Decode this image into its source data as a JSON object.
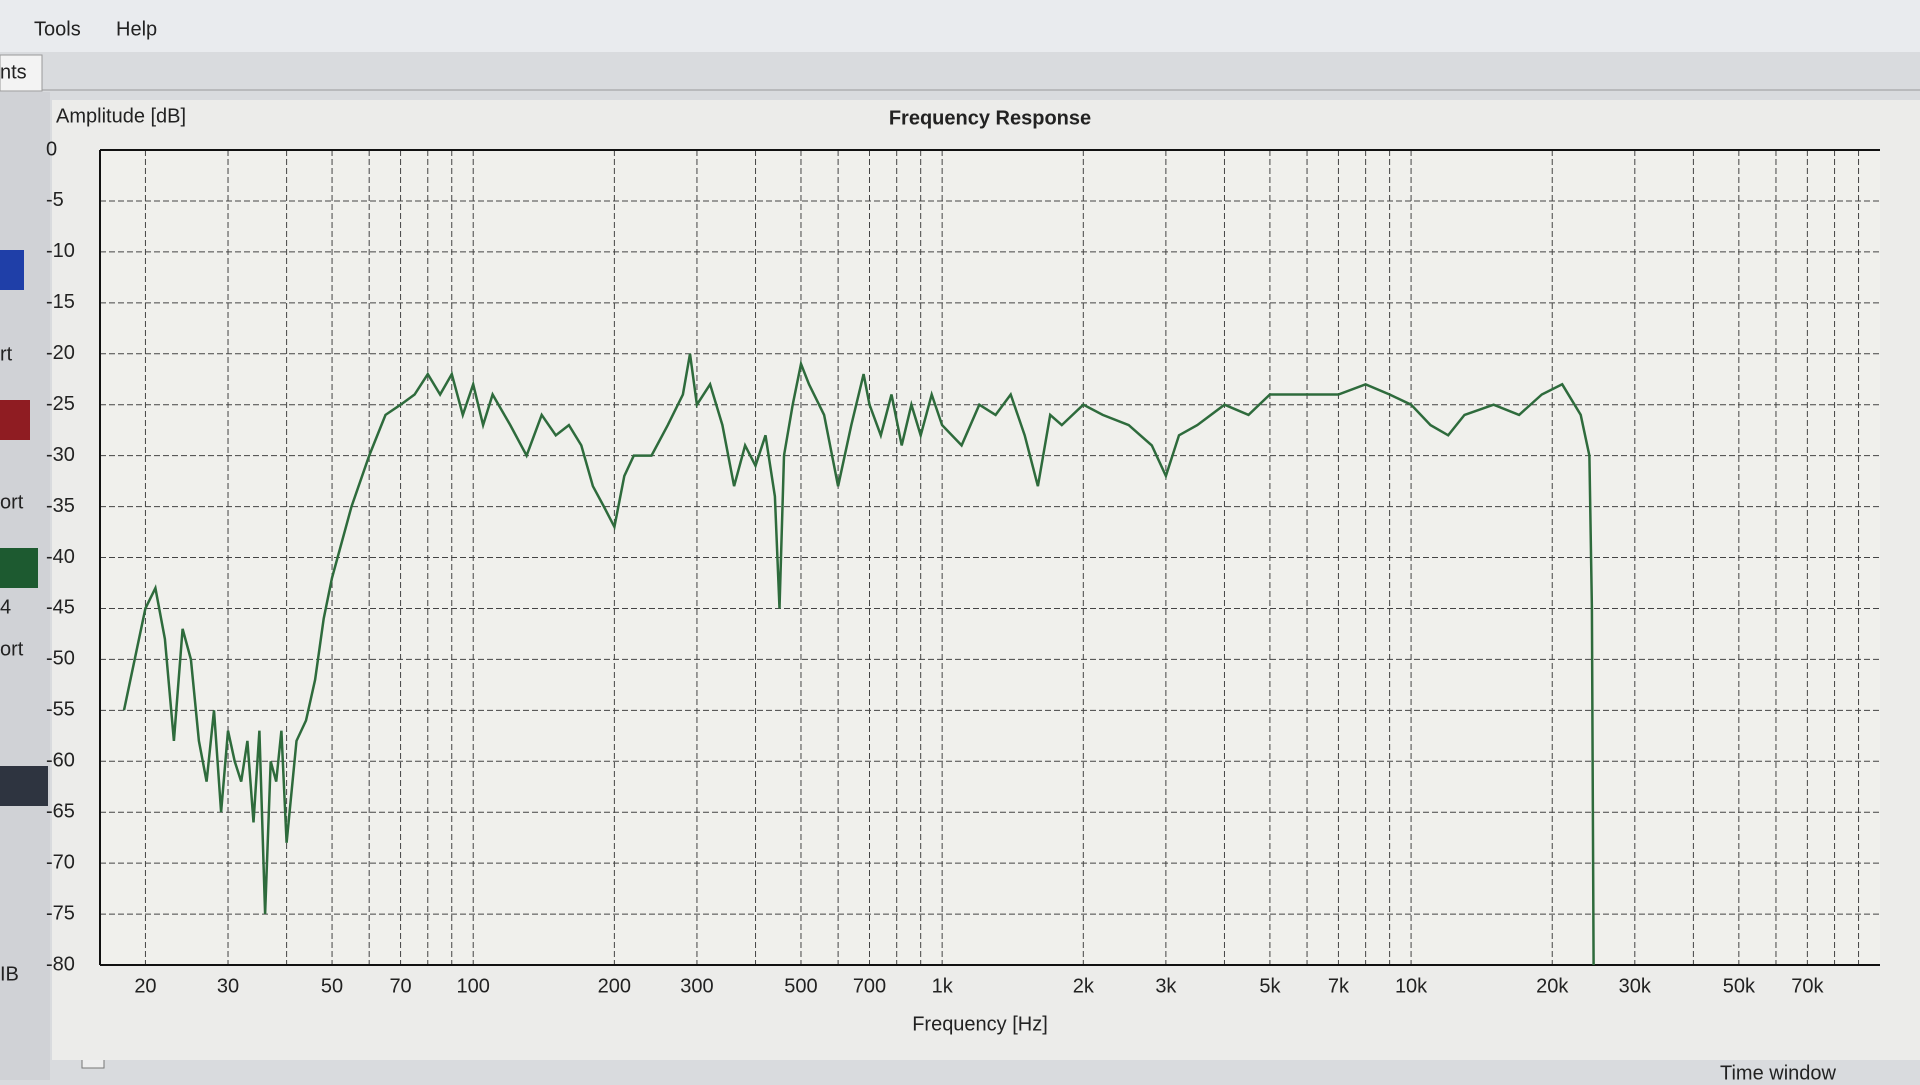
{
  "ui": {
    "menu": [
      "Tools",
      "Help"
    ],
    "tab": "nts",
    "side_labels": [
      "rt",
      "ort",
      "ort",
      "IB"
    ],
    "spinner": "4",
    "status": "Time window"
  },
  "chart_data": {
    "type": "line",
    "title": "Frequency Response",
    "x_label": "Frequency [Hz]",
    "y_label": "Amplitude [dB]",
    "log_x": true,
    "grid": true,
    "color": "#2e6b3c",
    "xlim": [
      16,
      100000
    ],
    "ylim": [
      -80,
      0
    ],
    "xticks": [
      20,
      30,
      50,
      70,
      100,
      200,
      300,
      500,
      700,
      {
        "value": 1000,
        "label": "1k"
      },
      {
        "value": 2000,
        "label": "2k"
      },
      {
        "value": 3000,
        "label": "3k"
      },
      {
        "value": 5000,
        "label": "5k"
      },
      {
        "value": 7000,
        "label": "7k"
      },
      {
        "value": 10000,
        "label": "10k"
      },
      {
        "value": 20000,
        "label": "20k"
      },
      {
        "value": 30000,
        "label": "30k"
      },
      {
        "value": 50000,
        "label": "50k"
      },
      {
        "value": 70000,
        "label": "70k"
      }
    ],
    "xminorticks": [
      40,
      60,
      80,
      90,
      400,
      600,
      800,
      900,
      4000,
      6000,
      8000,
      9000,
      40000,
      60000,
      80000,
      90000
    ],
    "yticks": [
      0,
      -5,
      -10,
      -15,
      -20,
      -25,
      -30,
      -35,
      -40,
      -45,
      -50,
      -55,
      -60,
      -65,
      -70,
      -75,
      -80
    ],
    "x": [
      18,
      20,
      21,
      22,
      23,
      24,
      25,
      26,
      27,
      28,
      29,
      30,
      31,
      32,
      33,
      34,
      35,
      36,
      37,
      38,
      39,
      40,
      42,
      44,
      46,
      48,
      50,
      55,
      60,
      65,
      70,
      75,
      80,
      85,
      90,
      95,
      100,
      105,
      110,
      120,
      130,
      140,
      150,
      160,
      170,
      180,
      190,
      200,
      210,
      220,
      240,
      260,
      280,
      290,
      300,
      320,
      340,
      360,
      380,
      400,
      420,
      440,
      450,
      460,
      480,
      500,
      520,
      560,
      600,
      640,
      680,
      700,
      740,
      780,
      820,
      860,
      900,
      950,
      1000,
      1100,
      1200,
      1300,
      1400,
      1500,
      1600,
      1700,
      1800,
      2000,
      2200,
      2500,
      2800,
      3000,
      3200,
      3500,
      4000,
      4500,
      5000,
      6000,
      7000,
      8000,
      9000,
      10000,
      11000,
      12000,
      13000,
      15000,
      17000,
      19000,
      21000,
      23000,
      24000,
      24300,
      24500
    ],
    "values": [
      -55,
      -45,
      -43,
      -48,
      -58,
      -47,
      -50,
      -58,
      -62,
      -55,
      -65,
      -57,
      -60,
      -62,
      -58,
      -66,
      -57,
      -75,
      -60,
      -62,
      -57,
      -68,
      -58,
      -56,
      -52,
      -46,
      -42,
      -35,
      -30,
      -26,
      -25,
      -24,
      -22,
      -24,
      -22,
      -26,
      -23,
      -27,
      -24,
      -27,
      -30,
      -26,
      -28,
      -27,
      -29,
      -33,
      -35,
      -37,
      -32,
      -30,
      -30,
      -27,
      -24,
      -20,
      -25,
      -23,
      -27,
      -33,
      -29,
      -31,
      -28,
      -34,
      -45,
      -30,
      -25,
      -21,
      -23,
      -26,
      -33,
      -27,
      -22,
      -25,
      -28,
      -24,
      -29,
      -25,
      -28,
      -24,
      -27,
      -29,
      -25,
      -26,
      -24,
      -28,
      -33,
      -26,
      -27,
      -25,
      -26,
      -27,
      -29,
      -32,
      -28,
      -27,
      -25,
      -26,
      -24,
      -24,
      -24,
      -23,
      -24,
      -25,
      -27,
      -28,
      -26,
      -25,
      -26,
      -24,
      -23,
      -26,
      -30,
      -45,
      -80
    ]
  }
}
